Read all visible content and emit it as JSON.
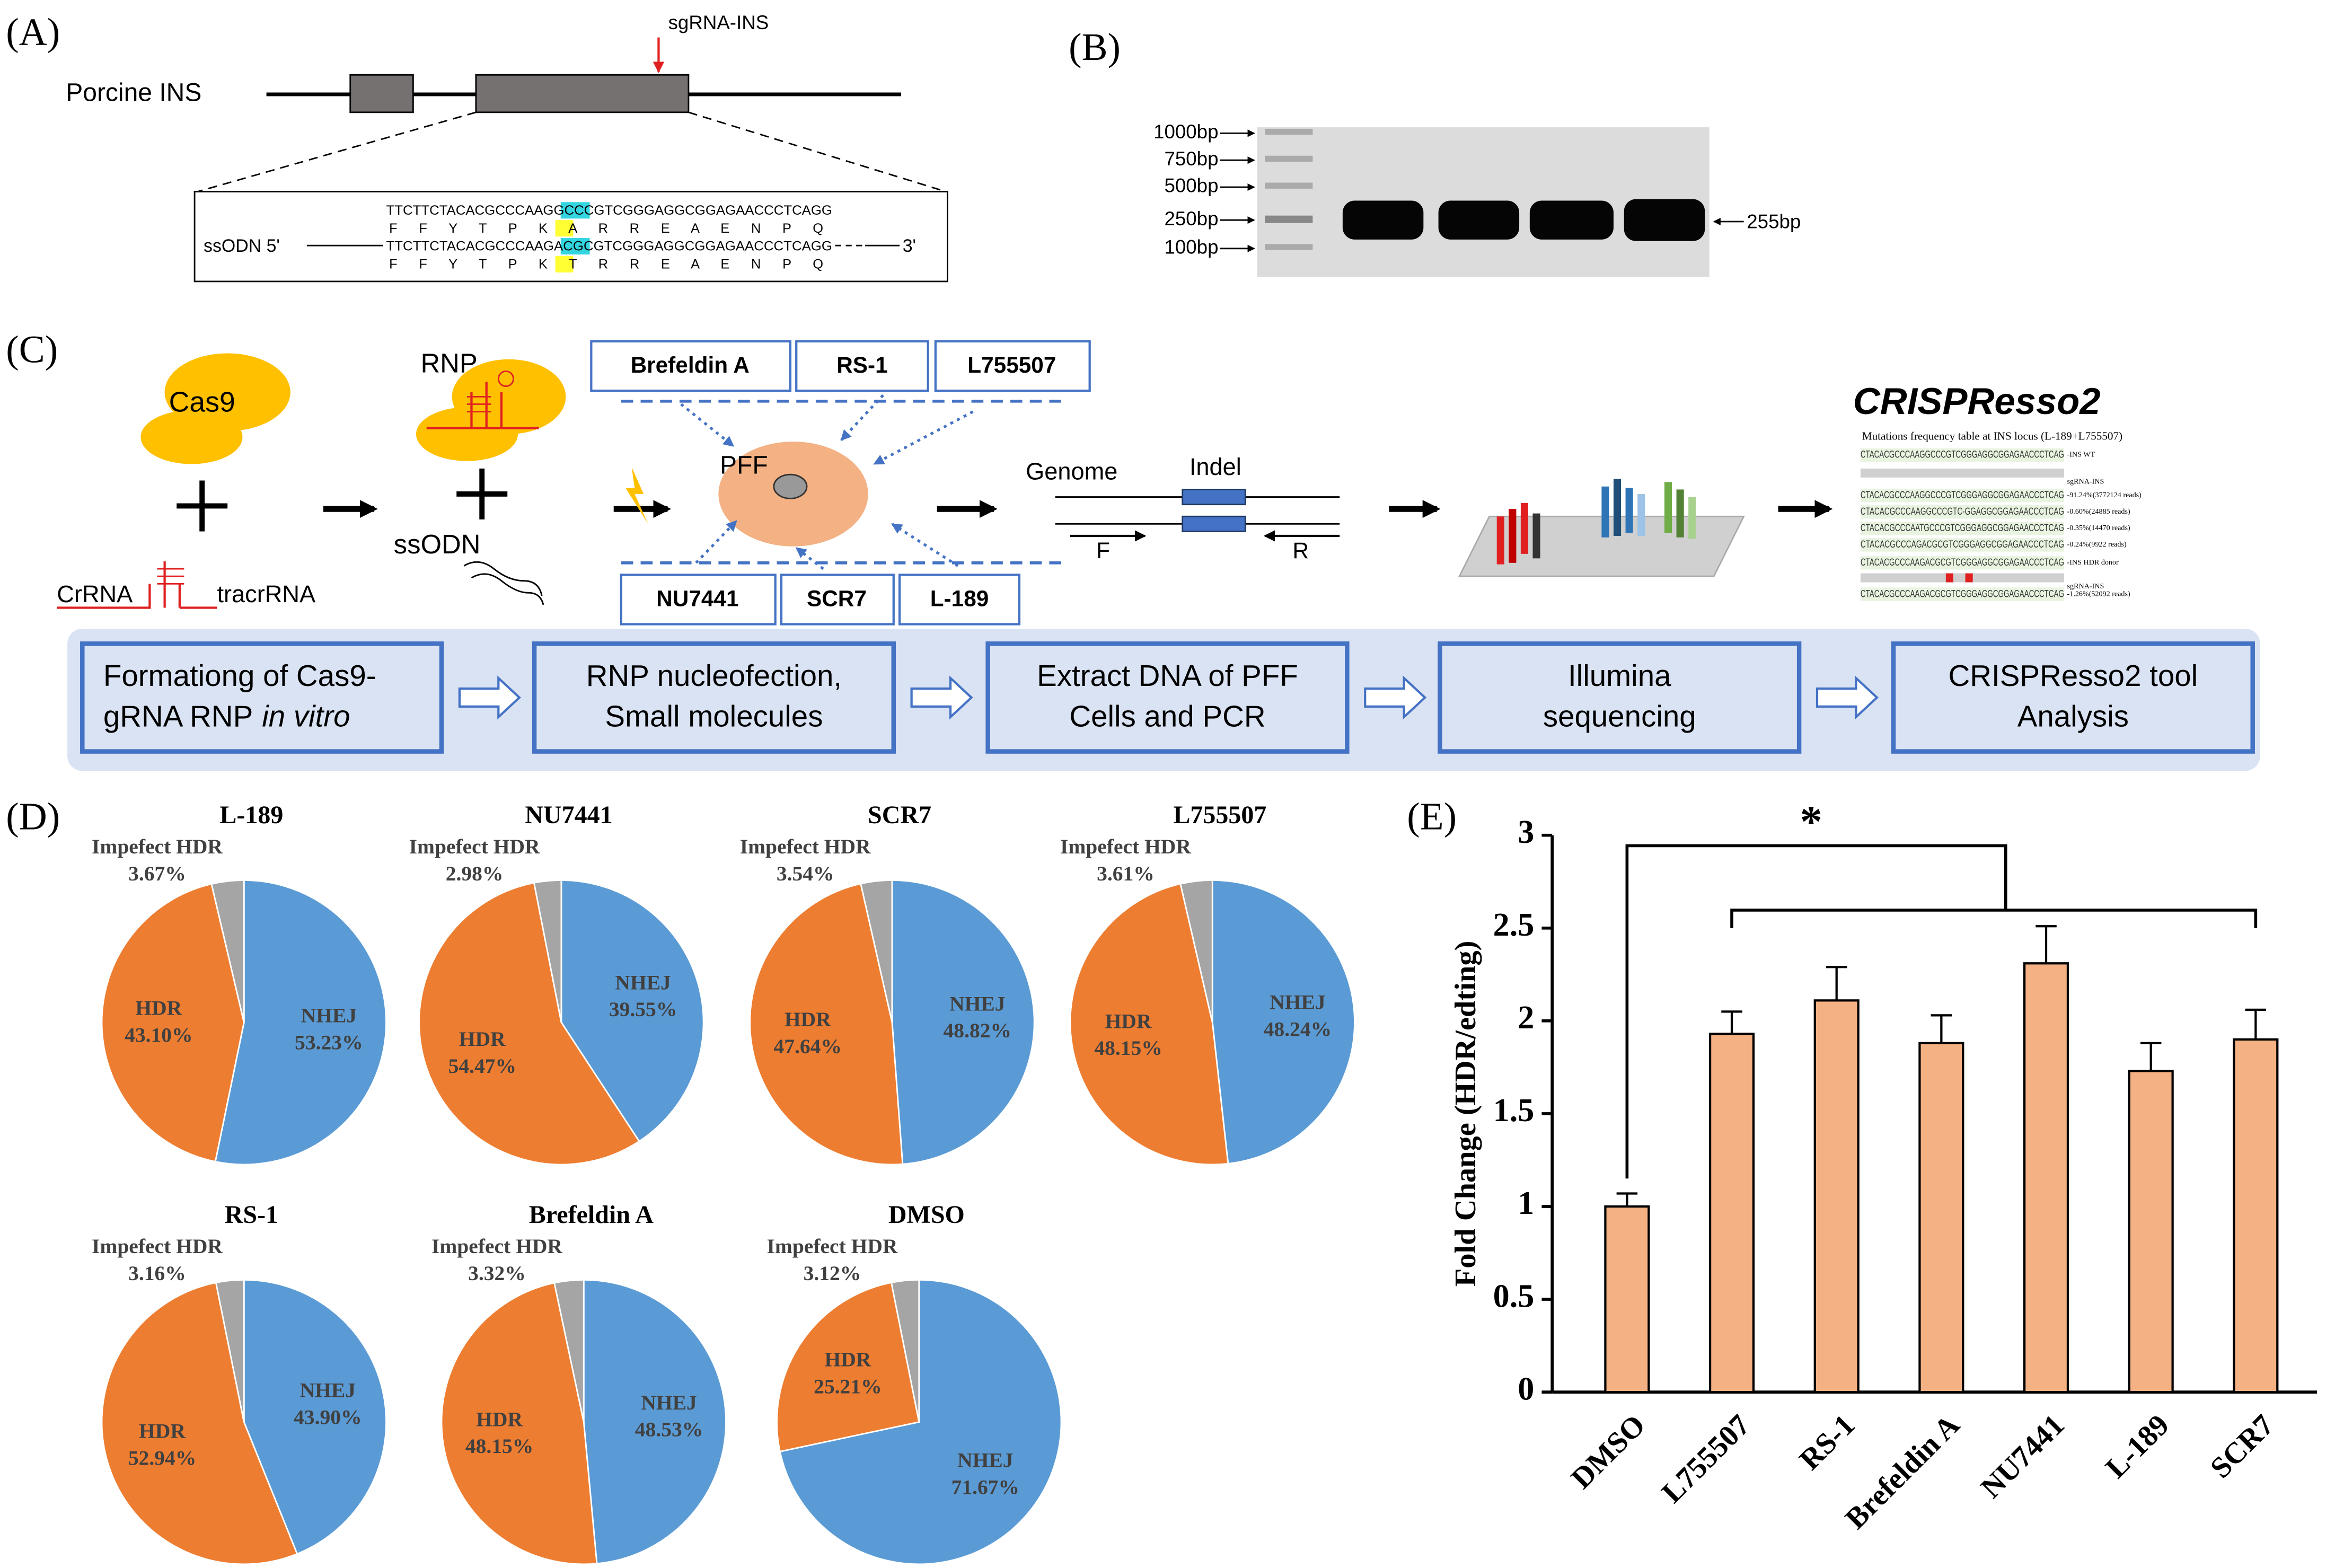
{
  "panel_labels": [
    "(A)",
    "(B)",
    "(C)",
    "(D)",
    "(E)"
  ],
  "panel_a": {
    "gene": "Porcine INS",
    "sgrna": "sgRNA-INS",
    "wt_seq": "TTCTTCTACACGCCCAAGGCCCGTCGGGAGGCGGAGAACCCTCAGG",
    "wt_aa": "F F Y T P K A R R E A E N P Q",
    "donor_label": "ssODN 5'",
    "donor_seq": "TTCTTCTACACGCCCAAGACGCGTCGGGAGGCGGAGAACCCTCAGG",
    "donor_aa": "F F Y T P K T R R E A E N P Q",
    "donor_end": "3'"
  },
  "panel_b": {
    "ladder": [
      "1000bp",
      "750bp",
      "500bp",
      "250bp",
      "100bp"
    ],
    "band": "255bp"
  },
  "panel_c": {
    "cas9": "Cas9",
    "crrna": "CrRNA",
    "tracrrna": "tracrRNA",
    "rnp": "RNP",
    "ssodn": "ssODN",
    "pff": "PFF",
    "molecules_top": [
      "Brefeldin A",
      "RS-1",
      "L755507"
    ],
    "molecules_bottom": [
      "NU7441",
      "SCR7",
      "L-189"
    ],
    "genome": "Genome",
    "indel": "Indel",
    "forward": "F",
    "reverse": "R",
    "crispresso": {
      "title": "CRISPResso2",
      "subtitle": "Mutations  frequency table at INS locus (L-189+L755507)",
      "rows": [
        {
          "seq": "CTACACGCCCAAGGCCCGTCGGGAGGCGGAGAACCCTCAG",
          "note": "-INS WT"
        },
        {
          "note": "sgRNA-INS"
        },
        {
          "seq": "CTACACGCCCAAGGCCCGTCGGGAGGCGGAGAACCCTCAG",
          "note": "-91.24%(3772124 reads)"
        },
        {
          "seq": "CTACACGCCCAAGGCCCGTC-GGAGGCGGAGAACCCTCAG",
          "note": "-0.60%(24885 reads)"
        },
        {
          "seq": "CTACACGCCCAATGCCCGTCGGGAGGCGGAGAACCCTCAG",
          "note": "-0.35%(14470 reads)"
        },
        {
          "seq": "CTACACGCCCAGACGCGTCGGGAGGCGGAGAACCCTCAG",
          "note": "-0.24%(9922 reads)"
        },
        {
          "seq": "CTACACGCCCAAGACGCGTCGGGAGGCGGAGAACCCTCAG",
          "note": "-INS HDR donor"
        },
        {
          "note": "sgRNA-INS"
        },
        {
          "seq": "CTACACGCCCAAGACGCGTCGGGAGGCGGAGAACCCTCAG",
          "note": "-1.26%(52092 reads)"
        }
      ]
    },
    "steps": [
      {
        "lines": [
          "Formationg of Cas9-",
          "gRNA RNP"
        ],
        "italic": "in vitro"
      },
      {
        "lines": [
          "RNP nucleofection,",
          "Small molecules"
        ]
      },
      {
        "lines": [
          "Extract DNA of PFF",
          "Cells and PCR"
        ]
      },
      {
        "lines": [
          "Illumina",
          "sequencing"
        ]
      },
      {
        "lines": [
          "CRISPResso2 tool",
          "Analysis"
        ]
      }
    ]
  },
  "chart_data": [
    {
      "type": "pie",
      "title": "L-189",
      "categories": [
        "NHEJ",
        "HDR",
        "Impefect HDR"
      ],
      "values": [
        53.23,
        43.1,
        3.67
      ],
      "value_labels": [
        "53.23%",
        "43.10%",
        "3.67%"
      ],
      "colors": [
        "#5b9bd5",
        "#ed7d31",
        "#a5a5a5"
      ]
    },
    {
      "type": "pie",
      "title": "NU7441",
      "categories": [
        "NHEJ",
        "HDR",
        "Impefect HDR"
      ],
      "values": [
        39.55,
        54.47,
        2.98
      ],
      "value_labels": [
        "39.55%",
        "54.47%",
        "2.98%"
      ],
      "colors": [
        "#5b9bd5",
        "#ed7d31",
        "#a5a5a5"
      ]
    },
    {
      "type": "pie",
      "title": "SCR7",
      "categories": [
        "NHEJ",
        "HDR",
        "Impefect HDR"
      ],
      "values": [
        48.82,
        47.64,
        3.54
      ],
      "value_labels": [
        "48.82%",
        "47.64%",
        "3.54%"
      ],
      "colors": [
        "#5b9bd5",
        "#ed7d31",
        "#a5a5a5"
      ]
    },
    {
      "type": "pie",
      "title": "L755507",
      "categories": [
        "NHEJ",
        "HDR",
        "Impefect HDR"
      ],
      "values": [
        48.24,
        48.15,
        3.61
      ],
      "value_labels": [
        "48.24%",
        "48.15%",
        "3.61%"
      ],
      "colors": [
        "#5b9bd5",
        "#ed7d31",
        "#a5a5a5"
      ]
    },
    {
      "type": "pie",
      "title": "RS-1",
      "categories": [
        "NHEJ",
        "HDR",
        "Impefect HDR"
      ],
      "values": [
        43.9,
        52.94,
        3.16
      ],
      "value_labels": [
        "43.90%",
        "52.94%",
        "3.16%"
      ],
      "colors": [
        "#5b9bd5",
        "#ed7d31",
        "#a5a5a5"
      ]
    },
    {
      "type": "pie",
      "title": "Brefeldin A",
      "categories": [
        "NHEJ",
        "HDR",
        "Impefect HDR"
      ],
      "values": [
        48.53,
        48.15,
        3.32
      ],
      "value_labels": [
        "48.53%",
        "48.15%",
        "3.32%"
      ],
      "colors": [
        "#5b9bd5",
        "#ed7d31",
        "#a5a5a5"
      ]
    },
    {
      "type": "pie",
      "title": "DMSO",
      "categories": [
        "NHEJ",
        "HDR",
        "Impefect HDR"
      ],
      "values": [
        71.67,
        25.21,
        3.12
      ],
      "value_labels": [
        "71.67%",
        "25.21%",
        "3.12%"
      ],
      "colors": [
        "#5b9bd5",
        "#ed7d31",
        "#a5a5a5"
      ]
    },
    {
      "type": "bar",
      "ylabel": "Fold Change (HDR/edting)",
      "annotation": "*",
      "categories": [
        "DMSO",
        "L755507",
        "RS-1",
        "Brefeldin A",
        "NU7441",
        "L-189",
        "SCR7"
      ],
      "values": [
        1.0,
        1.93,
        2.11,
        1.88,
        2.31,
        1.73,
        1.9
      ],
      "errors": [
        0.07,
        0.12,
        0.18,
        0.15,
        0.2,
        0.15,
        0.16
      ],
      "color": "#f4b183",
      "ylim": [
        0,
        3
      ],
      "yticks": [
        0,
        0.5,
        1,
        1.5,
        2,
        2.5,
        3
      ]
    }
  ]
}
